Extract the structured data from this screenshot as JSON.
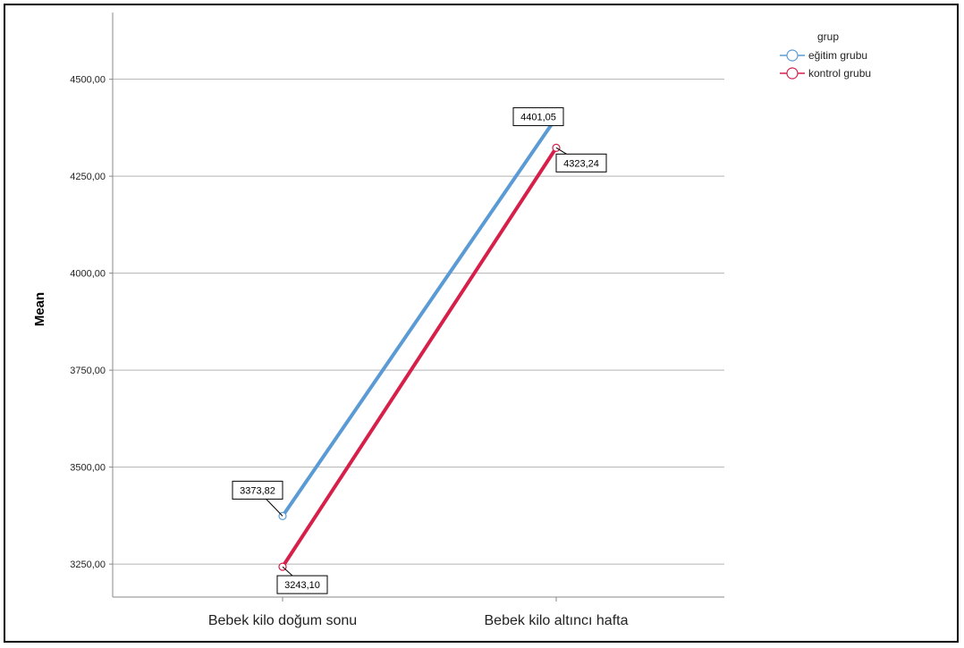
{
  "chart_data": {
    "type": "line",
    "categories": [
      "Bebek kilo doğum sonu",
      "Bebek kilo altıncı hafta"
    ],
    "series": [
      {
        "name": "eğitim grubu",
        "values": [
          3373.82,
          4401.05
        ],
        "labels": [
          "3373,82",
          "4401,05"
        ],
        "color": "#5b9bd5"
      },
      {
        "name": "kontrol grubu",
        "values": [
          3243.1,
          4323.24
        ],
        "labels": [
          "3243,10",
          "4323,24"
        ],
        "color": "#d6204a"
      }
    ],
    "ylabel": "Mean",
    "ylim": [
      3165,
      4672
    ],
    "yticks": [
      3250,
      3500,
      3750,
      4000,
      4250,
      4500
    ],
    "ytick_labels": [
      "3250,00",
      "3500,00",
      "3750,00",
      "4000,00",
      "4250,00",
      "4500,00"
    ],
    "legend_title": "grup",
    "legend_position": "top-right",
    "grid": "horizontal",
    "axis_color": "#888888",
    "grid_color": "#b3b3b3"
  }
}
